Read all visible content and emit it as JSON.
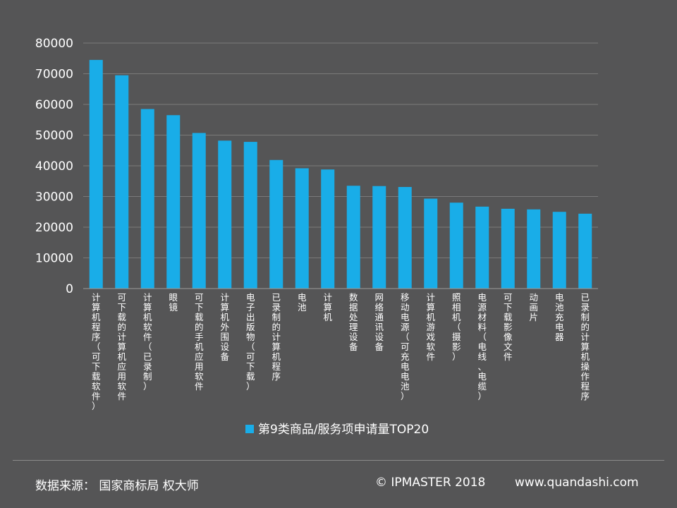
{
  "chart_data": {
    "type": "bar",
    "categories": [
      "计算机程序（可下载软件）",
      "可下载的计算机应用软件",
      "计算机软件（已录制）",
      "眼镜",
      "可下载的手机应用软件",
      "计算机外围设备",
      "电子出版物（可下载）",
      "已录制的计算机程序",
      "电池",
      "计算机",
      "数据处理设备",
      "网络通讯设备",
      "移动电源（可充电电池）",
      "计算机游戏软件",
      "照相机（摄影）",
      "电源材料（电线、电缆）",
      "可下载影像文件",
      "动画片",
      "电池充电器",
      "已录制的计算机操作程序"
    ],
    "series": [
      {
        "name": "第9类商品/服务项申请量TOP20",
        "values": [
          74500,
          69500,
          58500,
          56500,
          50700,
          48200,
          47800,
          41900,
          39200,
          38800,
          33500,
          33400,
          33100,
          29300,
          28000,
          26700,
          26000,
          25800,
          25000,
          24400
        ]
      }
    ],
    "ylim": [
      0,
      80000
    ],
    "yticks": [
      "0",
      "10000",
      "20000",
      "30000",
      "40000",
      "50000",
      "60000",
      "70000",
      "80000"
    ],
    "grid": true,
    "legend_position": "bottom",
    "bar_color": "#19ade8"
  },
  "footer": {
    "source": "数据来源： 国家商标局  权大师",
    "copyright": "© IPMASTER  2018",
    "website": "www.quandashi.com"
  }
}
